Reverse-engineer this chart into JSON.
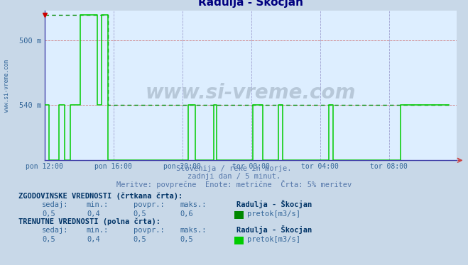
{
  "title": "Radulja - Škocjan",
  "title_color": "#000080",
  "bg_color": "#ddeeff",
  "outer_bg": "#c8d8e8",
  "ylabel_texts": [
    "540 m",
    "500 m"
  ],
  "y_ticks": [
    497,
    540
  ],
  "ylim": [
    460,
    560
  ],
  "xlim": [
    0,
    287
  ],
  "xtick_positions": [
    0,
    48,
    96,
    144,
    192,
    240
  ],
  "xtick_labels": [
    "pon 12:00",
    "pon 16:00",
    "pon 20:00",
    "tor 00:00",
    "tor 04:00",
    "tor 08:00"
  ],
  "vgrid_color": "#9999cc",
  "hgrid_color": "#cc6666",
  "line_dashed_color": "#008800",
  "line_solid_color": "#00cc00",
  "watermark_text": "www.si-vreme.com",
  "subtitle1": "Slovenija / reke in morje.",
  "subtitle2": "zadnji dan / 5 minut.",
  "subtitle3": "Meritve: povprečne  Enote: metrične  Črta: 5% meritev",
  "subtitle_color": "#5577aa",
  "label1_bold": "ZGODOVINSKE VREDNOSTI (črtkana črta):",
  "label2_bold": "TRENUTNE VREDNOSTI (polna črta):",
  "col_headers": [
    "sedaj:",
    "min.:",
    "povpr.:",
    "maks.:"
  ],
  "hist_values": [
    "0,5",
    "0,4",
    "0,5",
    "0,6"
  ],
  "curr_values": [
    "0,5",
    "0,4",
    "0,5",
    "0,5"
  ],
  "station_name": "Radulja - Škocjan",
  "series_label": "pretok[m3/s]",
  "text_color_blue": "#336699",
  "text_color_dark": "#003366",
  "hist_step_y": [
    557,
    557,
    557,
    557,
    557,
    557,
    557,
    557,
    557,
    557,
    557,
    557,
    557,
    557,
    557,
    557,
    557,
    557,
    557,
    557,
    557,
    557,
    557,
    557,
    557,
    557,
    557,
    557,
    557,
    557,
    557,
    557,
    557,
    557,
    557,
    557,
    557,
    557,
    557,
    557,
    557,
    557,
    557,
    557,
    497,
    497,
    497,
    497,
    497,
    497,
    497,
    497,
    497,
    497,
    497,
    497,
    497,
    497,
    497,
    497,
    497,
    497,
    497,
    497,
    497,
    497,
    497,
    497,
    497,
    497,
    497,
    497,
    497,
    497,
    497,
    497,
    497,
    497,
    497,
    497,
    497,
    497,
    497,
    497,
    497,
    497,
    497,
    497,
    497,
    497,
    497,
    497,
    497,
    497,
    497,
    497,
    497,
    497,
    497,
    497,
    497,
    497,
    497,
    497,
    497,
    497,
    497,
    497,
    497,
    497,
    497,
    497,
    497,
    497,
    497,
    497,
    497,
    497,
    497,
    497,
    497,
    497,
    497,
    497,
    497,
    497,
    497,
    497,
    497,
    497,
    497,
    497,
    497,
    497,
    497,
    497,
    497,
    497,
    497,
    497,
    497,
    497,
    497,
    497,
    497,
    497,
    497,
    497,
    497,
    497,
    497,
    497,
    497,
    497,
    497,
    497,
    497,
    497,
    497,
    497,
    497,
    497,
    497,
    497,
    497,
    497,
    497,
    497,
    497,
    497,
    497,
    497,
    497,
    497,
    497,
    497,
    497,
    497,
    497,
    497,
    497,
    497,
    497,
    497,
    497,
    497,
    497,
    497,
    497,
    497,
    497,
    497,
    497,
    497,
    497,
    497,
    497,
    497,
    497,
    497,
    497,
    497,
    497,
    497,
    497,
    497,
    497,
    497,
    497,
    497,
    497,
    497,
    497,
    497,
    497,
    497,
    497,
    497,
    497,
    497,
    497,
    497,
    497,
    497,
    497,
    497,
    497,
    497,
    497,
    497,
    497,
    497,
    497,
    497,
    497,
    497,
    497,
    497,
    497,
    497,
    497,
    497,
    497,
    497,
    497,
    497,
    497,
    497,
    497,
    497,
    497,
    497,
    497,
    497,
    497,
    497,
    497,
    497,
    497,
    497,
    497,
    497,
    497,
    497,
    497,
    497,
    497,
    497,
    497,
    497,
    497,
    497,
    497,
    497,
    497,
    497,
    497,
    497,
    497,
    497,
    497,
    497,
    497
  ],
  "solid_step_y": [
    497,
    497,
    497,
    460,
    460,
    460,
    460,
    460,
    460,
    460,
    497,
    497,
    497,
    497,
    460,
    460,
    460,
    460,
    497,
    497,
    497,
    497,
    497,
    497,
    497,
    557,
    557,
    557,
    557,
    557,
    557,
    557,
    557,
    557,
    557,
    557,
    557,
    497,
    497,
    497,
    557,
    557,
    557,
    557,
    460,
    460,
    460,
    460,
    460,
    460,
    460,
    460,
    460,
    460,
    460,
    460,
    460,
    460,
    460,
    460,
    460,
    460,
    460,
    460,
    460,
    460,
    460,
    460,
    460,
    460,
    460,
    460,
    460,
    460,
    460,
    460,
    460,
    460,
    460,
    460,
    460,
    460,
    460,
    460,
    460,
    460,
    460,
    460,
    460,
    460,
    460,
    460,
    460,
    460,
    460,
    460,
    460,
    460,
    460,
    460,
    497,
    497,
    497,
    497,
    497,
    460,
    460,
    460,
    460,
    460,
    460,
    460,
    460,
    460,
    460,
    460,
    460,
    460,
    497,
    497,
    460,
    460,
    460,
    460,
    460,
    460,
    460,
    460,
    460,
    460,
    460,
    460,
    460,
    460,
    460,
    460,
    460,
    460,
    460,
    460,
    460,
    460,
    460,
    460,
    460,
    497,
    497,
    497,
    497,
    497,
    497,
    497,
    460,
    460,
    460,
    460,
    460,
    460,
    460,
    460,
    460,
    460,
    460,
    497,
    497,
    497,
    460,
    460,
    460,
    460,
    460,
    460,
    460,
    460,
    460,
    460,
    460,
    460,
    460,
    460,
    460,
    460,
    460,
    460,
    460,
    460,
    460,
    460,
    460,
    460,
    460,
    460,
    460,
    460,
    460,
    460,
    460,
    460,
    497,
    497,
    497,
    460,
    460,
    460,
    460,
    460,
    460,
    460,
    460,
    460,
    460,
    460,
    460,
    460,
    460,
    460,
    460,
    460,
    460,
    460,
    460,
    460,
    460,
    460,
    460,
    460,
    460,
    460,
    460,
    460,
    460,
    460,
    460,
    460,
    460,
    460,
    460,
    460,
    460,
    460,
    460,
    460,
    460,
    460,
    460,
    460,
    460,
    460,
    497,
    497,
    497,
    497,
    497,
    497,
    497,
    497,
    497,
    497,
    497,
    497,
    497,
    497,
    497,
    497,
    497,
    497,
    497,
    497,
    497,
    497,
    497,
    497,
    497,
    497,
    497,
    497,
    497,
    497,
    497,
    497,
    497,
    497,
    497
  ],
  "marker_color": "#cc0000",
  "marker_x": 0,
  "marker_y": 557
}
